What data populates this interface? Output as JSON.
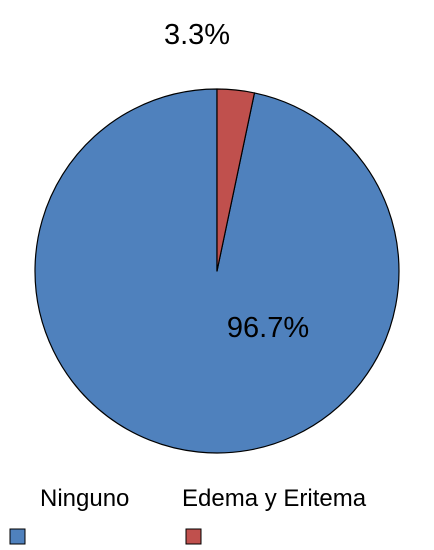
{
  "chart_data": {
    "type": "pie",
    "title": "",
    "start_angle_deg": 0,
    "direction": "counterclockwise",
    "slices": [
      {
        "name": "Ninguno",
        "value": 96.7,
        "label": "96.7%",
        "color": "#4f81bd",
        "stroke": "#000000"
      },
      {
        "name": "Edema y Eritema",
        "value": 3.3,
        "label": "3.3%",
        "color": "#c0504d",
        "stroke": "#000000"
      }
    ],
    "legend": {
      "placement": "bottom",
      "entries": [
        "Ninguno",
        "Edema y Eritema"
      ]
    }
  }
}
